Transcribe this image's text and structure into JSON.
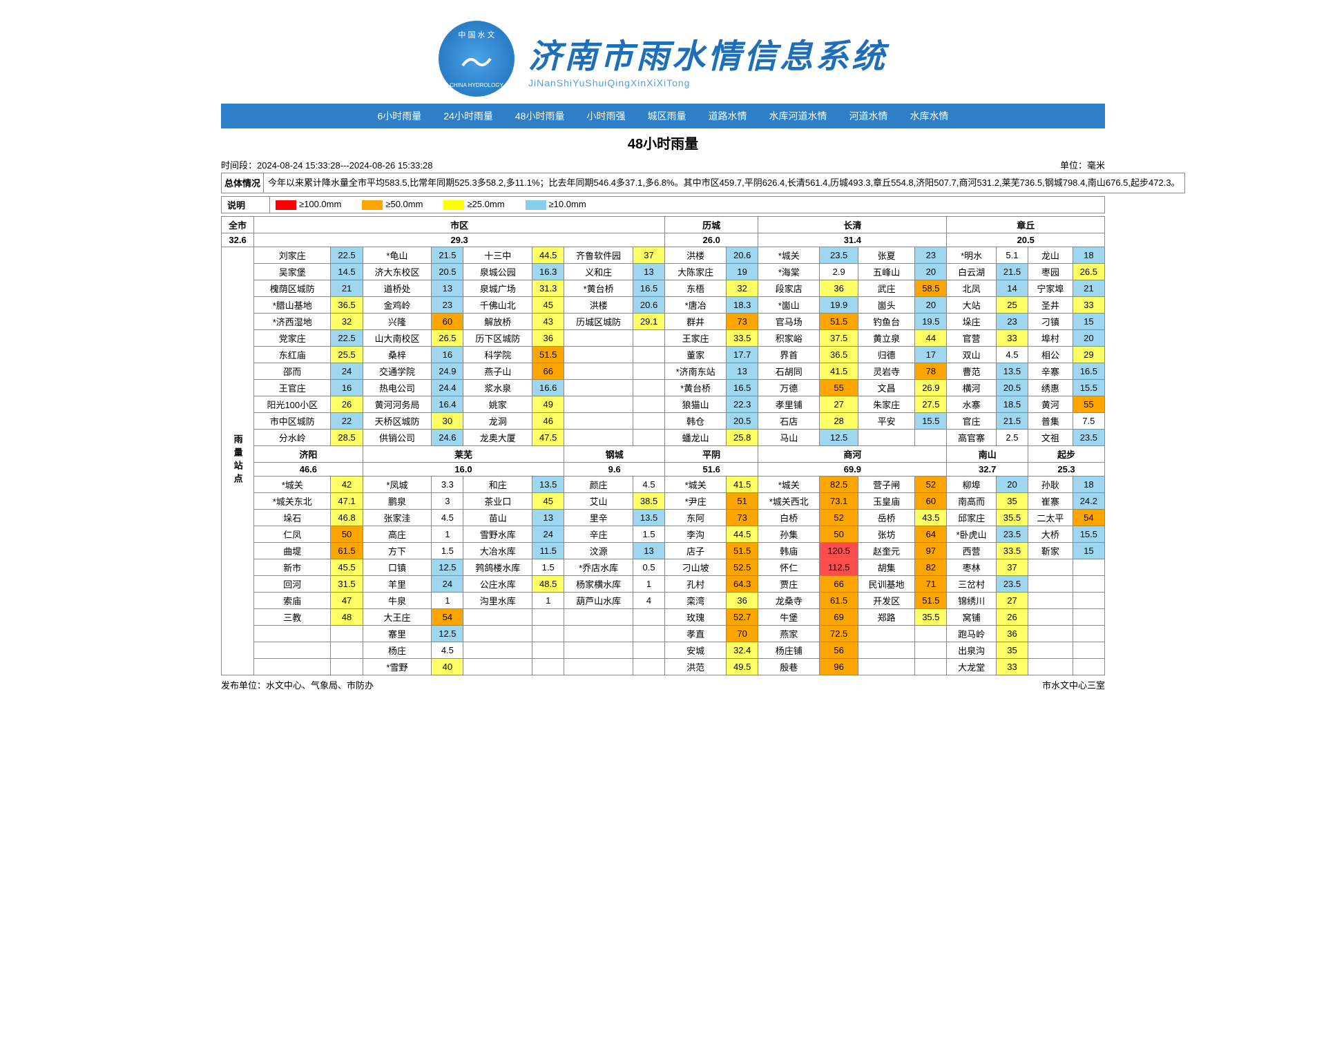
{
  "header": {
    "title": "济南市雨水情信息系统",
    "subtitle": "JiNanShiYuShuiQingXinXiXiTong"
  },
  "nav": [
    "6小时雨量",
    "24小时雨量",
    "48小时雨量",
    "小时雨强",
    "城区雨量",
    "道路水情",
    "水库河道水情",
    "河道水情",
    "水库水情"
  ],
  "section_title": "48小时雨量",
  "time": {
    "label": "时间段：",
    "value": "2024-08-24 15:33:28---2024-08-26 15:33:28"
  },
  "unit": {
    "label": "单位：",
    "value": "毫米"
  },
  "situation": {
    "label": "总体情况",
    "text": "今年以来累计降水量全市平均583.5,比常年同期525.3多58.2,多11.1%；比去年同期546.4多37.1,多6.8%。其中市区459.7,平阴626.4,长清561.4,历城493.3,章丘554.8,济阳507.7,商河531.2,莱芜736.5,钢城798.4,南山676.5,起步472.3。"
  },
  "legend": {
    "label": "说明",
    "items": [
      {
        "color": "#ff0000",
        "text": "≥100.0mm"
      },
      {
        "color": "#ffa500",
        "text": "≥50.0mm"
      },
      {
        "color": "#ffff00",
        "text": "≥25.0mm"
      },
      {
        "color": "#87ceeb",
        "text": "≥10.0mm"
      }
    ]
  },
  "thresholds": {
    "red": 100,
    "orange": 50,
    "yellow": 25,
    "blue": 10,
    "colors": {
      "red": "#ff4d4d",
      "orange": "#ffa500",
      "yellow": "#ffff66",
      "blue": "#9fd7f0",
      "none": "#ffffff"
    }
  },
  "total": {
    "label": "全市",
    "value": "32.6"
  },
  "top_regions": [
    {
      "name": "市区",
      "value": "29.3",
      "span": 6
    },
    {
      "name": "历城",
      "value": "26.0",
      "span": 2
    },
    {
      "name": "长清",
      "value": "31.4",
      "span": 4
    },
    {
      "name": "章丘",
      "value": "20.5",
      "span": 4
    }
  ],
  "top_rows": [
    [
      [
        "刘家庄",
        "22.5"
      ],
      [
        "*龟山",
        "21.5"
      ],
      [
        "十三中",
        "44.5"
      ],
      [
        "齐鲁软件园",
        "37"
      ],
      [
        "洪楼",
        "20.6"
      ],
      [
        "*城关",
        "23.5"
      ],
      [
        "张夏",
        "23"
      ],
      [
        "*明水",
        "5.1"
      ],
      [
        "龙山",
        "18"
      ]
    ],
    [
      [
        "吴家堡",
        "14.5"
      ],
      [
        "济大东校区",
        "20.5"
      ],
      [
        "泉城公园",
        "16.3"
      ],
      [
        "义和庄",
        "13"
      ],
      [
        "大陈家庄",
        "19"
      ],
      [
        "*海棠",
        "2.9"
      ],
      [
        "五峰山",
        "20"
      ],
      [
        "白云湖",
        "21.5"
      ],
      [
        "枣园",
        "26.5"
      ]
    ],
    [
      [
        "槐荫区城防",
        "21"
      ],
      [
        "道桥处",
        "13"
      ],
      [
        "泉城广场",
        "31.3"
      ],
      [
        "*黄台桥",
        "16.5"
      ],
      [
        "东梧",
        "32"
      ],
      [
        "段家店",
        "36"
      ],
      [
        "武庄",
        "58.5"
      ],
      [
        "北凤",
        "14"
      ],
      [
        "宁家埠",
        "21"
      ]
    ],
    [
      [
        "*腊山基地",
        "36.5"
      ],
      [
        "金鸡岭",
        "23"
      ],
      [
        "千佛山北",
        "45"
      ],
      [
        "洪楼",
        "20.6"
      ],
      [
        "*唐冶",
        "18.3"
      ],
      [
        "*崮山",
        "19.9"
      ],
      [
        "崮头",
        "20"
      ],
      [
        "大站",
        "25"
      ],
      [
        "圣井",
        "33"
      ]
    ],
    [
      [
        "*济西湿地",
        "32"
      ],
      [
        "兴隆",
        "60"
      ],
      [
        "解放桥",
        "43"
      ],
      [
        "历城区城防",
        "29.1"
      ],
      [
        "群井",
        "73"
      ],
      [
        "官马场",
        "51.5"
      ],
      [
        "钓鱼台",
        "19.5"
      ],
      [
        "垛庄",
        "23"
      ],
      [
        "刁镇",
        "15"
      ]
    ],
    [
      [
        "党家庄",
        "22.5"
      ],
      [
        "山大南校区",
        "26.5"
      ],
      [
        "历下区城防",
        "36"
      ],
      [
        "",
        ""
      ],
      [
        "王家庄",
        "33.5"
      ],
      [
        "积家峪",
        "37.5"
      ],
      [
        "黄立泉",
        "44"
      ],
      [
        "官营",
        "33"
      ],
      [
        "埠村",
        "20"
      ]
    ],
    [
      [
        "东红庙",
        "25.5"
      ],
      [
        "桑梓",
        "16"
      ],
      [
        "科学院",
        "51.5"
      ],
      [
        "",
        ""
      ],
      [
        "董家",
        "17.7"
      ],
      [
        "界首",
        "36.5"
      ],
      [
        "归德",
        "17"
      ],
      [
        "双山",
        "4.5"
      ],
      [
        "相公",
        "29"
      ]
    ],
    [
      [
        "邵而",
        "24"
      ],
      [
        "交通学院",
        "24.9"
      ],
      [
        "燕子山",
        "66"
      ],
      [
        "",
        ""
      ],
      [
        "*济南东站",
        "13"
      ],
      [
        "石胡同",
        "41.5"
      ],
      [
        "灵岩寺",
        "78"
      ],
      [
        "曹范",
        "13.5"
      ],
      [
        "辛寨",
        "16.5"
      ]
    ],
    [
      [
        "王官庄",
        "16"
      ],
      [
        "热电公司",
        "24.4"
      ],
      [
        "浆水泉",
        "16.6"
      ],
      [
        "",
        ""
      ],
      [
        "*黄台桥",
        "16.5"
      ],
      [
        "万德",
        "55"
      ],
      [
        "文昌",
        "26.9"
      ],
      [
        "横河",
        "20.5"
      ],
      [
        "绣惠",
        "15.5"
      ]
    ],
    [
      [
        "阳光100小区",
        "26"
      ],
      [
        "黄河河务局",
        "16.4"
      ],
      [
        "姚家",
        "49"
      ],
      [
        "",
        ""
      ],
      [
        "狼猫山",
        "22.3"
      ],
      [
        "孝里铺",
        "27"
      ],
      [
        "朱家庄",
        "27.5"
      ],
      [
        "水寨",
        "18.5"
      ],
      [
        "黄河",
        "55"
      ]
    ],
    [
      [
        "市中区城防",
        "22"
      ],
      [
        "天桥区城防",
        "30"
      ],
      [
        "龙洞",
        "46"
      ],
      [
        "",
        ""
      ],
      [
        "韩仓",
        "20.5"
      ],
      [
        "石店",
        "28"
      ],
      [
        "平安",
        "15.5"
      ],
      [
        "官庄",
        "21.5"
      ],
      [
        "普集",
        "7.5"
      ]
    ],
    [
      [
        "分水岭",
        "28.5"
      ],
      [
        "供销公司",
        "24.6"
      ],
      [
        "龙奥大厦",
        "47.5"
      ],
      [
        "",
        ""
      ],
      [
        "蟠龙山",
        "25.8"
      ],
      [
        "马山",
        "12.5"
      ],
      [
        "",
        ""
      ],
      [
        "高官寨",
        "2.5"
      ],
      [
        "文祖",
        "23.5"
      ]
    ]
  ],
  "bottom_regions": [
    {
      "name": "济阳",
      "value": "46.6",
      "span": 2
    },
    {
      "name": "莱芜",
      "value": "16.0",
      "span": 4
    },
    {
      "name": "钢城",
      "value": "9.6",
      "span": 2
    },
    {
      "name": "平阴",
      "value": "51.6",
      "span": 2
    },
    {
      "name": "商河",
      "value": "69.9",
      "span": 4
    },
    {
      "name": "南山",
      "value": "32.7",
      "span": 2
    },
    {
      "name": "起步",
      "value": "25.3",
      "span": 2
    }
  ],
  "bottom_rows": [
    [
      [
        "*城关",
        "42"
      ],
      [
        "*凤城",
        "3.3"
      ],
      [
        "和庄",
        "13.5"
      ],
      [
        "颜庄",
        "4.5"
      ],
      [
        "*城关",
        "41.5"
      ],
      [
        "*城关",
        "82.5"
      ],
      [
        "营子闸",
        "52"
      ],
      [
        "柳埠",
        "20"
      ],
      [
        "孙耿",
        "18"
      ]
    ],
    [
      [
        "*城关东北",
        "47.1"
      ],
      [
        "鹏泉",
        "3"
      ],
      [
        "茶业口",
        "45"
      ],
      [
        "艾山",
        "38.5"
      ],
      [
        "*尹庄",
        "51"
      ],
      [
        "*城关西北",
        "73.1"
      ],
      [
        "玉皇庙",
        "60"
      ],
      [
        "南高而",
        "35"
      ],
      [
        "崔寨",
        "24.2"
      ]
    ],
    [
      [
        "垛石",
        "46.8"
      ],
      [
        "张家洼",
        "4.5"
      ],
      [
        "苗山",
        "13"
      ],
      [
        "里辛",
        "13.5"
      ],
      [
        "东阿",
        "73"
      ],
      [
        "白桥",
        "52"
      ],
      [
        "岳桥",
        "43.5"
      ],
      [
        "邱家庄",
        "35.5"
      ],
      [
        "二太平",
        "54"
      ]
    ],
    [
      [
        "仁凤",
        "50"
      ],
      [
        "高庄",
        "1"
      ],
      [
        "雪野水库",
        "24"
      ],
      [
        "辛庄",
        "1.5"
      ],
      [
        "李沟",
        "44.5"
      ],
      [
        "孙集",
        "50"
      ],
      [
        "张坊",
        "64"
      ],
      [
        "*卧虎山",
        "23.5"
      ],
      [
        "大桥",
        "15.5"
      ]
    ],
    [
      [
        "曲堤",
        "61.5"
      ],
      [
        "方下",
        "1.5"
      ],
      [
        "大冶水库",
        "11.5"
      ],
      [
        "汶源",
        "13"
      ],
      [
        "店子",
        "51.5"
      ],
      [
        "韩庙",
        "120.5"
      ],
      [
        "赵奎元",
        "97"
      ],
      [
        "西营",
        "33.5"
      ],
      [
        "靳家",
        "15"
      ]
    ],
    [
      [
        "新市",
        "45.5"
      ],
      [
        "口镇",
        "12.5"
      ],
      [
        "鹁鸽楼水库",
        "1.5"
      ],
      [
        "*乔店水库",
        "0.5"
      ],
      [
        "刁山坡",
        "52.5"
      ],
      [
        "怀仁",
        "112.5"
      ],
      [
        "胡集",
        "82"
      ],
      [
        "枣林",
        "37"
      ],
      [
        "",
        ""
      ]
    ],
    [
      [
        "回河",
        "31.5"
      ],
      [
        "羊里",
        "24"
      ],
      [
        "公庄水库",
        "48.5"
      ],
      [
        "杨家横水库",
        "1"
      ],
      [
        "孔村",
        "64.3"
      ],
      [
        "贾庄",
        "66"
      ],
      [
        "民训基地",
        "71"
      ],
      [
        "三岔村",
        "23.5"
      ],
      [
        "",
        ""
      ]
    ],
    [
      [
        "索庙",
        "47"
      ],
      [
        "牛泉",
        "1"
      ],
      [
        "沟里水库",
        "1"
      ],
      [
        "葫芦山水库",
        "4"
      ],
      [
        "栾湾",
        "36"
      ],
      [
        "龙桑寺",
        "61.5"
      ],
      [
        "开发区",
        "51.5"
      ],
      [
        "锦绣川",
        "27"
      ],
      [
        "",
        ""
      ]
    ],
    [
      [
        "三教",
        "48"
      ],
      [
        "大王庄",
        "54"
      ],
      [
        "",
        ""
      ],
      [
        "",
        ""
      ],
      [
        "玫瑰",
        "52.7"
      ],
      [
        "牛堡",
        "69"
      ],
      [
        "郑路",
        "35.5"
      ],
      [
        "窝铺",
        "26"
      ],
      [
        "",
        ""
      ]
    ],
    [
      [
        "",
        ""
      ],
      [
        "寨里",
        "12.5"
      ],
      [
        "",
        ""
      ],
      [
        "",
        ""
      ],
      [
        "孝直",
        "70"
      ],
      [
        "燕家",
        "72.5"
      ],
      [
        "",
        ""
      ],
      [
        "跑马岭",
        "36"
      ],
      [
        "",
        ""
      ]
    ],
    [
      [
        "",
        ""
      ],
      [
        "杨庄",
        "4.5"
      ],
      [
        "",
        ""
      ],
      [
        "",
        ""
      ],
      [
        "安城",
        "32.4"
      ],
      [
        "杨庄铺",
        "56"
      ],
      [
        "",
        ""
      ],
      [
        "出泉沟",
        "35"
      ],
      [
        "",
        ""
      ]
    ],
    [
      [
        "",
        ""
      ],
      [
        "*雪野",
        "40"
      ],
      [
        "",
        ""
      ],
      [
        "",
        ""
      ],
      [
        "洪范",
        "49.5"
      ],
      [
        "殷巷",
        "96"
      ],
      [
        "",
        ""
      ],
      [
        "大龙堂",
        "33"
      ],
      [
        "",
        ""
      ]
    ]
  ],
  "station_label": "雨量站点",
  "footer": {
    "left": "发布单位：水文中心、气象局、市防办",
    "right": "市水文中心三室"
  }
}
